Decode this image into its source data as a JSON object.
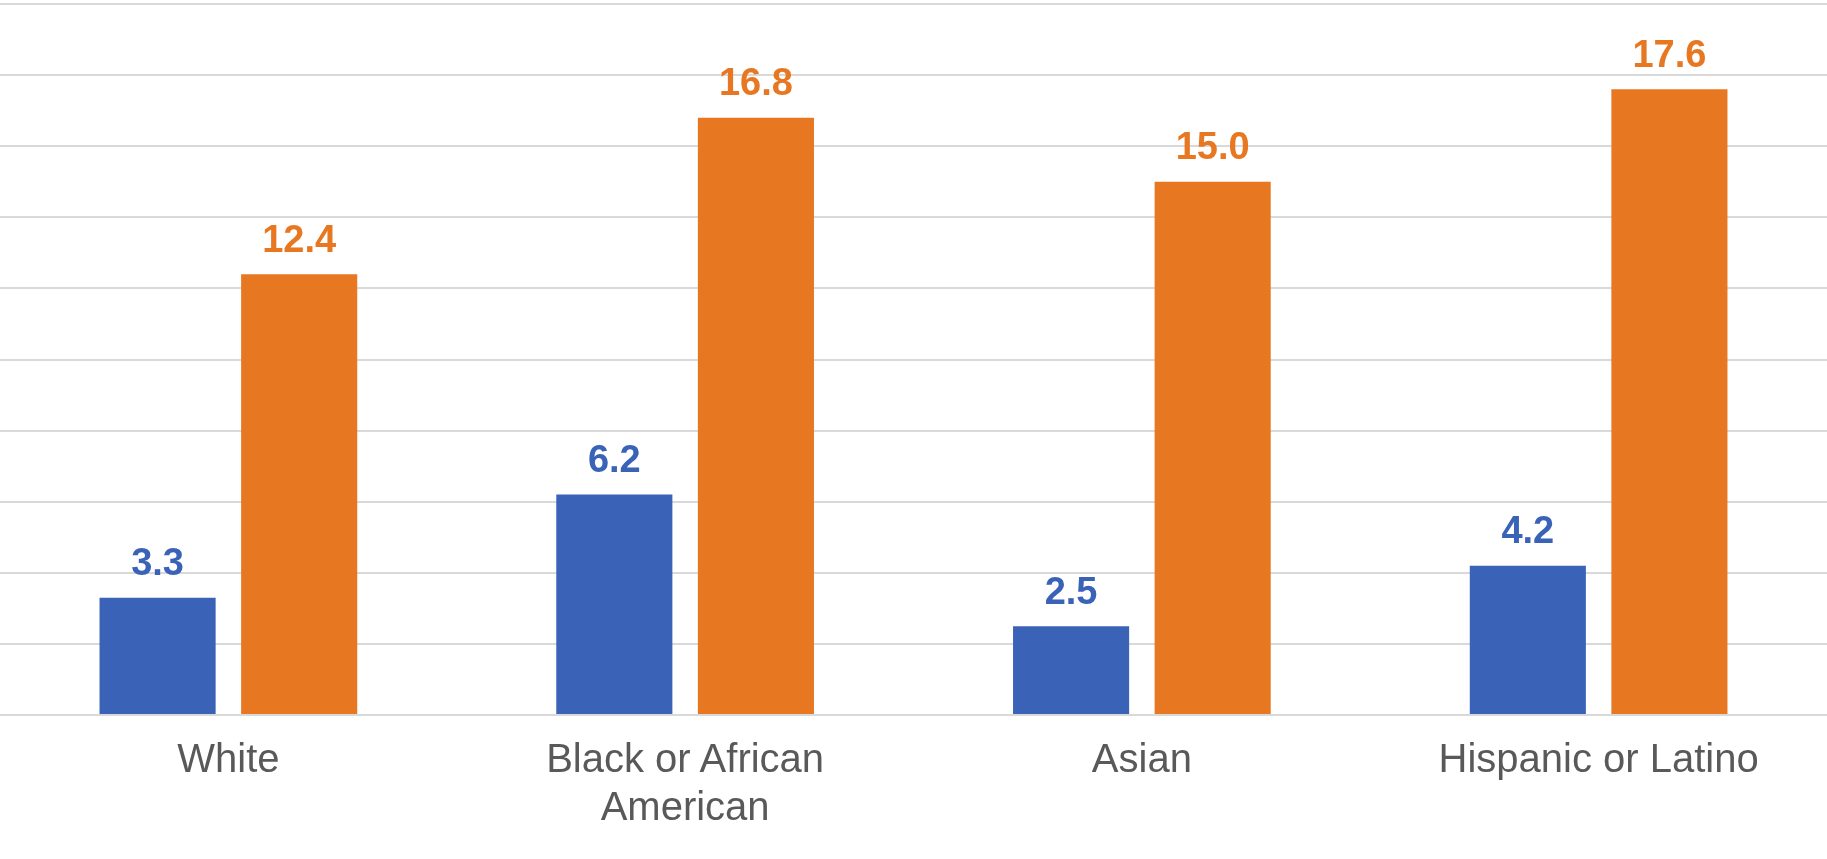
{
  "chart_data": {
    "type": "bar",
    "categories": [
      "White",
      "Black or African American",
      "Asian",
      "Hispanic or Latino"
    ],
    "series": [
      {
        "color": "#3a63b8",
        "values": [
          3.3,
          6.2,
          2.5,
          4.2
        ],
        "value_labels": [
          "3.3",
          "6.2",
          "2.5",
          "4.2"
        ]
      },
      {
        "color": "#e87722",
        "values": [
          12.4,
          16.8,
          15.0,
          17.6
        ],
        "value_labels": [
          "12.4",
          "16.8",
          "15.0",
          "17.6"
        ]
      }
    ],
    "ylim": [
      0,
      20
    ],
    "yticks": [
      {
        "value": 0,
        "label": null
      },
      {
        "value": 2,
        "label": null
      },
      {
        "value": 4,
        "label": null
      },
      {
        "value": 6,
        "label": null
      },
      {
        "value": 8,
        "label": null
      },
      {
        "value": 10,
        "label": null
      },
      {
        "value": 12,
        "label": null
      },
      {
        "value": 14,
        "label": null
      },
      {
        "value": 16,
        "label": null
      },
      {
        "value": 18,
        "label": null
      },
      {
        "value": 20,
        "label": null
      }
    ],
    "tick_labels": "x",
    "grid": "y",
    "legend": false
  }
}
